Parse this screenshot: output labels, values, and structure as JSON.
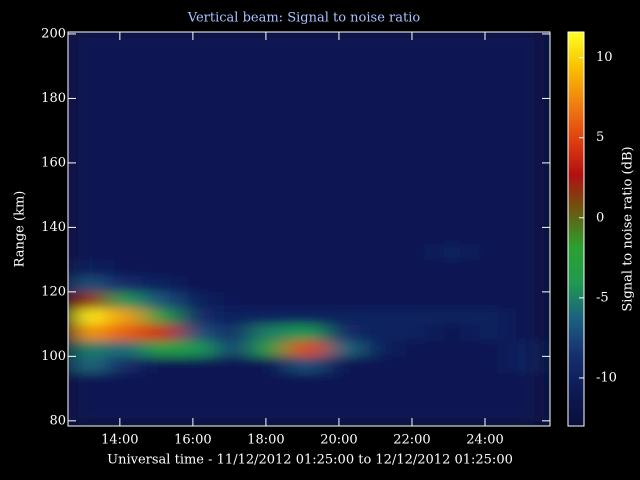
{
  "chart_data": {
    "type": "heatmap",
    "title": "Vertical beam: Signal to noise ratio",
    "xlabel": "Universal time - 11/12/2012 01:25:00 to 12/12/2012 01:25:00",
    "ylabel": "Range (km)",
    "colorbar_label": "Signal to noise ratio (dB)",
    "xlim": [
      12.58,
      25.78
    ],
    "ylim": [
      78.4,
      200.6
    ],
    "zlim": [
      -13,
      11.6
    ],
    "xticks": [
      {
        "value": 14,
        "label": "14:00"
      },
      {
        "value": 16,
        "label": "16:00"
      },
      {
        "value": 18,
        "label": "18:00"
      },
      {
        "value": 20,
        "label": "20:00"
      },
      {
        "value": 22,
        "label": "22:00"
      },
      {
        "value": 24,
        "label": "24:00"
      }
    ],
    "yticks": [
      80,
      100,
      120,
      140,
      160,
      180,
      200
    ],
    "zticks": [
      -10,
      -5,
      0,
      5,
      10
    ],
    "xbins": [
      12.6,
      13.6,
      14.6,
      15.6,
      16.6,
      17.6,
      18.6,
      19.6,
      20.6,
      21.6,
      22.6,
      23.6,
      24.6,
      25.6
    ],
    "ybins": [
      80,
      85,
      90,
      95,
      100,
      105,
      110,
      115,
      120,
      125,
      130,
      135,
      140,
      145,
      150,
      155,
      160,
      165,
      170,
      175,
      180,
      185,
      190,
      195,
      200
    ],
    "colorscale": [
      "#0a0d3a",
      "#0d1a55",
      "#15306e",
      "#1d6080",
      "#1f9a50",
      "#2ca030",
      "#6a5a10",
      "#b01010",
      "#e04010",
      "#f08010",
      "#f8c000",
      "#ffff20"
    ],
    "z": [
      [
        -11,
        -11,
        -11,
        -11,
        -11,
        -11,
        -11,
        -11,
        -11,
        -11,
        -11,
        -11,
        -11
      ],
      [
        -11,
        -11,
        -11,
        -11,
        -11,
        -11,
        -11,
        -11,
        -11,
        -11,
        -11,
        -11,
        -11
      ],
      [
        -11,
        -11,
        -11,
        -11,
        -11,
        -11,
        -11,
        -11,
        -11,
        -11,
        -11,
        -11,
        -11
      ],
      [
        -6,
        -9,
        -11,
        -11,
        -11,
        -11,
        -7,
        -11,
        -11,
        -11,
        -11,
        -11,
        -10
      ],
      [
        -5,
        -6,
        -3,
        -4,
        -8,
        -3,
        5,
        -6,
        -10,
        -11,
        -11,
        -11,
        -10
      ],
      [
        8,
        6,
        4,
        -7,
        -9,
        -5,
        -4,
        -9,
        -10,
        -10,
        -11,
        -10,
        -11
      ],
      [
        11,
        8,
        -3,
        -9,
        -10,
        -10,
        -10,
        -10,
        -10,
        -10,
        -10,
        -10,
        -11
      ],
      [
        2,
        -4,
        -7,
        -10,
        -11,
        -11,
        -11,
        -11,
        -11,
        -11,
        -11,
        -11,
        -11
      ],
      [
        -7,
        -9,
        -10,
        -11,
        -11,
        -11,
        -11,
        -11,
        -11,
        -11,
        -11,
        -11,
        -11
      ],
      [
        -10,
        -11,
        -11,
        -11,
        -11,
        -11,
        -11,
        -11,
        -11,
        -11,
        -11,
        -11,
        -11
      ],
      [
        -11,
        -11,
        -11,
        -11,
        -11,
        -11,
        -11,
        -11,
        -11,
        -11,
        -10,
        -11,
        -11
      ],
      [
        -11,
        -11,
        -11,
        -11,
        -11,
        -11,
        -11,
        -11,
        -11,
        -11,
        -11,
        -11,
        -11
      ],
      [
        -11,
        -11,
        -11,
        -11,
        -11,
        -11,
        -11,
        -11,
        -11,
        -11,
        -11,
        -11,
        -11
      ],
      [
        -11,
        -11,
        -11,
        -11,
        -11,
        -11,
        -11,
        -11,
        -11,
        -11,
        -11,
        -11,
        -11
      ],
      [
        -11,
        -11,
        -11,
        -11,
        -11,
        -11,
        -11,
        -11,
        -11,
        -11,
        -11,
        -11,
        -11
      ],
      [
        -11,
        -11,
        -11,
        -11,
        -11,
        -11,
        -11,
        -11,
        -11,
        -11,
        -11,
        -11,
        -11
      ],
      [
        -11,
        -11,
        -11,
        -11,
        -11,
        -11,
        -11,
        -11,
        -11,
        -11,
        -11,
        -11,
        -11
      ],
      [
        -11,
        -11,
        -11,
        -11,
        -11,
        -11,
        -11,
        -11,
        -11,
        -11,
        -11,
        -11,
        -11
      ],
      [
        -11,
        -11,
        -11,
        -11,
        -11,
        -11,
        -11,
        -11,
        -11,
        -11,
        -11,
        -11,
        -11
      ],
      [
        -11,
        -11,
        -11,
        -11,
        -11,
        -11,
        -11,
        -11,
        -11,
        -11,
        -11,
        -11,
        -11
      ],
      [
        -11,
        -11,
        -11,
        -11,
        -11,
        -11,
        -11,
        -11,
        -11,
        -11,
        -11,
        -11,
        -11
      ],
      [
        -11,
        -11,
        -11,
        -11,
        -11,
        -11,
        -11,
        -11,
        -11,
        -11,
        -11,
        -11,
        -11
      ],
      [
        -11,
        -11,
        -11,
        -11,
        -11,
        -11,
        -11,
        -11,
        -11,
        -11,
        -11,
        -11,
        -11
      ],
      [
        -11,
        -11,
        -11,
        -11,
        -11,
        -11,
        -11,
        -11,
        -11,
        -11,
        -11,
        -11,
        -11
      ]
    ]
  }
}
